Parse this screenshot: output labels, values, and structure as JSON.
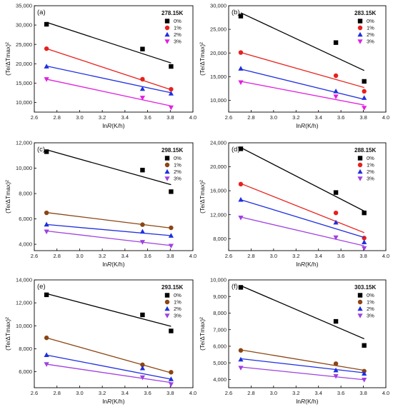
{
  "chart_data": [
    {
      "type": "scatter",
      "panel": "(a)",
      "temperature": "278.15K",
      "xlabel": "lnR(K/h)",
      "ylabel": "(Te/ΔTmax)²",
      "xlim": [
        2.6,
        4.0
      ],
      "ylim": [
        7500,
        35000
      ],
      "xticks": [
        "2.6",
        "2.8",
        "3.0",
        "3.2",
        "3.4",
        "3.6",
        "3.8",
        "4.0"
      ],
      "yticks": [
        "10,000",
        "15,000",
        "20,000",
        "25,000",
        "30,000",
        "35,000"
      ],
      "ytick_values": [
        10000,
        15000,
        20000,
        25000,
        30000,
        35000
      ],
      "x": [
        2.708,
        3.555,
        3.807
      ],
      "series": [
        {
          "name": "0%",
          "color": "#000000",
          "marker": "square",
          "values": [
            30200,
            23800,
            19300
          ],
          "fit": [
            30700,
            20200
          ]
        },
        {
          "name": "1%",
          "color": "#e8201c",
          "marker": "circle",
          "values": [
            23900,
            16000,
            13400
          ],
          "fit": [
            23900,
            13300
          ]
        },
        {
          "name": "2%",
          "color": "#1f2fe0",
          "marker": "triangle-up",
          "values": [
            19300,
            13500,
            12300
          ],
          "fit": [
            19400,
            12500
          ]
        },
        {
          "name": "3%",
          "color": "#e020e0",
          "marker": "triangle-down",
          "values": [
            16000,
            11200,
            8700
          ],
          "fit": [
            16000,
            9100
          ]
        }
      ]
    },
    {
      "type": "scatter",
      "panel": "(b)",
      "temperature": "283.15K",
      "xlabel": "lnR(K/h)",
      "ylabel": "(Te/ΔTmax)²",
      "xlim": [
        2.6,
        4.0
      ],
      "ylim": [
        7500,
        30000
      ],
      "xticks": [
        "2.6",
        "2.8",
        "3.0",
        "3.2",
        "3.4",
        "3.6",
        "3.8",
        "4.0"
      ],
      "yticks": [
        "10,000",
        "15,000",
        "20,000",
        "25,000",
        "30,000"
      ],
      "ytick_values": [
        10000,
        15000,
        20000,
        25000,
        30000
      ],
      "x": [
        2.708,
        3.555,
        3.807
      ],
      "series": [
        {
          "name": "0%",
          "color": "#000000",
          "marker": "square",
          "values": [
            27800,
            22200,
            14000
          ],
          "fit": [
            28500,
            16300
          ]
        },
        {
          "name": "1%",
          "color": "#e8201c",
          "marker": "circle",
          "values": [
            20100,
            15200,
            11900
          ],
          "fit": [
            20100,
            12700
          ]
        },
        {
          "name": "2%",
          "color": "#1f2fe0",
          "marker": "triangle-up",
          "values": [
            16700,
            11900,
            10500
          ],
          "fit": [
            16600,
            10200
          ]
        },
        {
          "name": "3%",
          "color": "#e020e0",
          "marker": "triangle-down",
          "values": [
            13800,
            10800,
            8400
          ],
          "fit": [
            14000,
            9000
          ]
        }
      ]
    },
    {
      "type": "scatter",
      "panel": "(c)",
      "temperature": "298.15K",
      "xlabel": "lnR(K/h)",
      "ylabel": "(Te/ΔTmax)²",
      "xlim": [
        2.6,
        4.0
      ],
      "ylim": [
        3500,
        12000
      ],
      "xticks": [
        "2.6",
        "2.8",
        "3.0",
        "3.2",
        "3.4",
        "3.6",
        "3.8",
        "4.0"
      ],
      "yticks": [
        "4,000",
        "6,000",
        "8,000",
        "10,000",
        "12,000"
      ],
      "ytick_values": [
        4000,
        6000,
        8000,
        10000,
        12000
      ],
      "x": [
        2.708,
        3.555,
        3.807
      ],
      "series": [
        {
          "name": "0%",
          "color": "#000000",
          "marker": "square",
          "values": [
            11300,
            9850,
            8150
          ],
          "fit": [
            11450,
            8700
          ]
        },
        {
          "name": "1%",
          "color": "#8b4513",
          "marker": "circle",
          "values": [
            6480,
            5550,
            5300
          ],
          "fit": [
            6500,
            5280
          ]
        },
        {
          "name": "2%",
          "color": "#1f2fe0",
          "marker": "triangle-up",
          "values": [
            5560,
            5000,
            4680
          ],
          "fit": [
            5560,
            4680
          ]
        },
        {
          "name": "3%",
          "color": "#a040e0",
          "marker": "triangle-down",
          "values": [
            5000,
            4180,
            3880
          ],
          "fit": [
            5050,
            3900
          ]
        }
      ]
    },
    {
      "type": "scatter",
      "panel": "(d)",
      "temperature": "288.15K",
      "xlabel": "lnR(K/h)",
      "ylabel": "(Te/ΔTmax)²",
      "xlim": [
        2.6,
        4.0
      ],
      "ylim": [
        6000,
        24000
      ],
      "xticks": [
        "2.6",
        "2.8",
        "3.0",
        "3.2",
        "3.4",
        "3.6",
        "3.8",
        "4.0"
      ],
      "yticks": [
        "8,000",
        "12,000",
        "16,000",
        "20,000",
        "24,000"
      ],
      "ytick_values": [
        8000,
        12000,
        16000,
        20000,
        24000
      ],
      "x": [
        2.708,
        3.555,
        3.807
      ],
      "series": [
        {
          "name": "0%",
          "color": "#000000",
          "marker": "square",
          "values": [
            23000,
            15700,
            12300
          ],
          "fit": [
            23200,
            12600
          ]
        },
        {
          "name": "1%",
          "color": "#e8201c",
          "marker": "circle",
          "values": [
            17100,
            12300,
            8100
          ],
          "fit": [
            17200,
            9000
          ]
        },
        {
          "name": "2%",
          "color": "#1f2fe0",
          "marker": "triangle-up",
          "values": [
            14500,
            10700,
            7400
          ],
          "fit": [
            14500,
            8200
          ]
        },
        {
          "name": "3%",
          "color": "#a040e0",
          "marker": "triangle-down",
          "values": [
            11500,
            8200,
            6400
          ],
          "fit": [
            11600,
            6800
          ]
        }
      ]
    },
    {
      "type": "scatter",
      "panel": "(e)",
      "temperature": "293.15K",
      "xlabel": "lnR(K/h)",
      "ylabel": "(Te/ΔTmax)²",
      "xlim": [
        2.6,
        4.0
      ],
      "ylim": [
        4600,
        14000
      ],
      "xticks": [
        "2.6",
        "2.8",
        "3.0",
        "3.2",
        "3.4",
        "3.6",
        "3.8",
        "4.0"
      ],
      "yticks": [
        "6,000",
        "8,000",
        "10,000",
        "12,000",
        "14,000"
      ],
      "ytick_values": [
        6000,
        8000,
        10000,
        12000,
        14000
      ],
      "x": [
        2.708,
        3.555,
        3.807
      ],
      "series": [
        {
          "name": "0%",
          "color": "#000000",
          "marker": "square",
          "values": [
            12700,
            10950,
            9550
          ],
          "fit": [
            12800,
            9950
          ]
        },
        {
          "name": "1%",
          "color": "#8b4513",
          "marker": "circle",
          "values": [
            8950,
            6600,
            5950
          ],
          "fit": [
            8950,
            5900
          ]
        },
        {
          "name": "2%",
          "color": "#1f2fe0",
          "marker": "triangle-up",
          "values": [
            7450,
            6300,
            5350
          ],
          "fit": [
            7450,
            5350
          ]
        },
        {
          "name": "3%",
          "color": "#a040e0",
          "marker": "triangle-down",
          "values": [
            6650,
            5500,
            4900
          ],
          "fit": [
            6650,
            5050
          ]
        }
      ]
    },
    {
      "type": "scatter",
      "panel": "(f)",
      "temperature": "303.15K",
      "xlabel": "lnR(K/h)",
      "ylabel": "(Te/ΔTmax)²",
      "xlim": [
        2.6,
        4.0
      ],
      "ylim": [
        3500,
        10000
      ],
      "xticks": [
        "2.6",
        "2.8",
        "3.0",
        "3.2",
        "3.4",
        "3.6",
        "3.8",
        "4.0"
      ],
      "yticks": [
        "4,000",
        "5,000",
        "6,000",
        "7,000",
        "8,000",
        "9,000",
        "10,000"
      ],
      "ytick_values": [
        4000,
        5000,
        6000,
        7000,
        8000,
        9000,
        10000
      ],
      "x": [
        2.708,
        3.555,
        3.807
      ],
      "series": [
        {
          "name": "0%",
          "color": "#000000",
          "marker": "square",
          "values": [
            9550,
            7500,
            6050
          ],
          "fit": [
            9650,
            6450
          ]
        },
        {
          "name": "1%",
          "color": "#8b4513",
          "marker": "circle",
          "values": [
            5750,
            4950,
            4500
          ],
          "fit": [
            5780,
            4550
          ]
        },
        {
          "name": "2%",
          "color": "#1f2fe0",
          "marker": "triangle-up",
          "values": [
            5200,
            4550,
            4350
          ],
          "fit": [
            5250,
            4400
          ]
        },
        {
          "name": "3%",
          "color": "#a040e0",
          "marker": "triangle-down",
          "values": [
            4700,
            4200,
            3980
          ],
          "fit": [
            4750,
            3980
          ]
        }
      ]
    }
  ]
}
